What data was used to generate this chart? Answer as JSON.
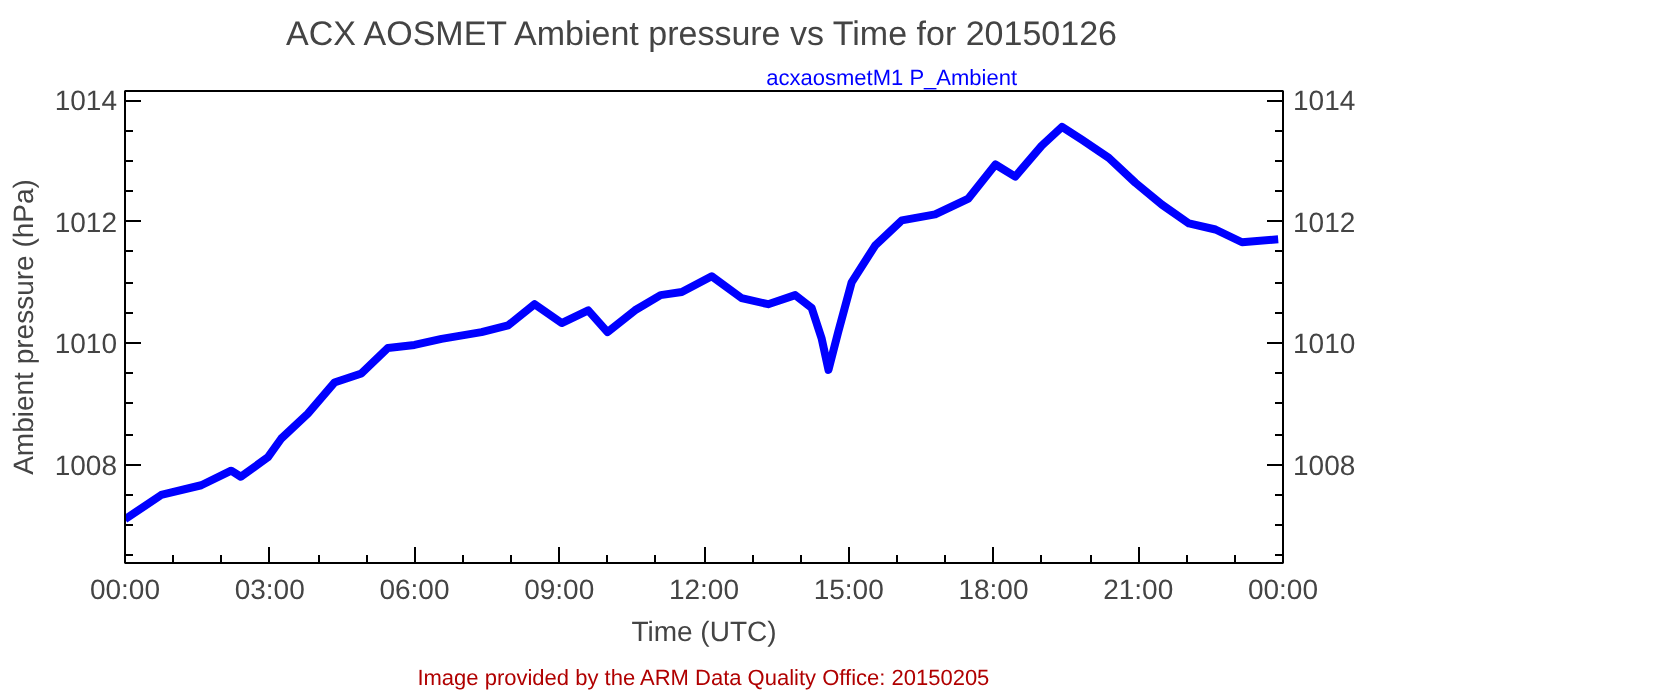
{
  "chart_data": {
    "type": "line",
    "title": "ACX AOSMET Ambient pressure vs Time for 20150126",
    "xlabel": "Time (UTC)",
    "ylabel": "Ambient pressure (hPa)",
    "annotations": [
      "Image provided by the ARM Data Quality Office: 20150205"
    ],
    "series": [
      {
        "name": "acxaosmetM1 P_Ambient",
        "color": "#0000ff",
        "x": [
          0,
          0.75,
          1.58,
          2.2,
          2.4,
          2.96,
          3.24,
          3.79,
          4.34,
          4.9,
          5.45,
          6.0,
          6.56,
          7.39,
          7.94,
          8.49,
          9.05,
          9.6,
          10.0,
          10.57,
          11.1,
          11.54,
          12.16,
          12.78,
          13.33,
          13.89,
          14.23,
          14.44,
          14.58,
          14.78,
          15.06,
          15.55,
          16.1,
          16.79,
          17.48,
          18.04,
          18.45,
          19.0,
          19.42,
          19.83,
          20.39,
          20.94,
          21.49,
          22.05,
          22.6,
          23.15,
          23.9
        ],
        "values": [
          1007.1,
          1007.5,
          1007.66,
          1007.9,
          1007.8,
          1008.12,
          1008.43,
          1008.84,
          1009.35,
          1009.5,
          1009.92,
          1009.97,
          1010.07,
          1010.18,
          1010.29,
          1010.64,
          1010.33,
          1010.54,
          1010.18,
          1010.54,
          1010.79,
          1010.84,
          1011.1,
          1010.74,
          1010.64,
          1010.79,
          1010.58,
          1010.07,
          1009.56,
          1010.18,
          1011.0,
          1011.61,
          1012.02,
          1012.12,
          1012.38,
          1012.94,
          1012.74,
          1013.25,
          1013.56,
          1013.35,
          1013.05,
          1012.64,
          1012.28,
          1011.97,
          1011.87,
          1011.66,
          1011.71
        ]
      }
    ],
    "xlim": [
      0,
      24
    ],
    "xticks": [
      {
        "value": 0,
        "label": "00:00"
      },
      {
        "value": 3,
        "label": "03:00"
      },
      {
        "value": 6,
        "label": "06:00"
      },
      {
        "value": 9,
        "label": "09:00"
      },
      {
        "value": 12,
        "label": "12:00"
      },
      {
        "value": 15,
        "label": "15:00"
      },
      {
        "value": 18,
        "label": "18:00"
      },
      {
        "value": 21,
        "label": "21:00"
      },
      {
        "value": 24,
        "label": "00:00"
      }
    ],
    "ylim": [
      1006.38,
      1014.15
    ],
    "yticks": [
      1008,
      1010,
      1012,
      1014
    ],
    "y2lim": [
      1006.38,
      1014.15
    ],
    "y2ticks": [
      1008,
      1010,
      1012,
      1014
    ],
    "grid": false,
    "marker": "none",
    "line_style": "solid"
  }
}
